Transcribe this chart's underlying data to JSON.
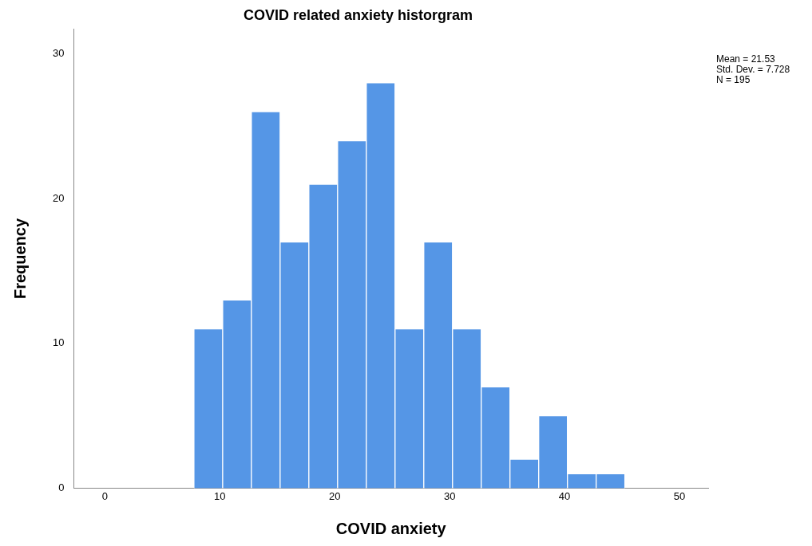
{
  "chart_data": {
    "type": "histogram",
    "title": "COVID related anxiety historgram",
    "xlabel": "COVID anxiety",
    "ylabel": "Frequency",
    "bins": [
      7.75,
      10.25,
      12.75,
      15.25,
      17.75,
      20.25,
      22.75,
      25.25,
      27.75,
      30.25,
      32.75,
      35.25,
      37.75,
      40.25,
      42.75,
      45.25
    ],
    "values": [
      11,
      13,
      26,
      17,
      21,
      24,
      28,
      11,
      17,
      11,
      7,
      2,
      5,
      1,
      1
    ],
    "color": "#5596e6",
    "xlim": [
      -2.7,
      52.5
    ],
    "xticks": [
      0,
      10,
      20,
      30,
      40,
      50
    ],
    "ylim": [
      0,
      31.7
    ],
    "yticks": [
      0,
      10,
      20,
      30
    ],
    "grid": false,
    "legend": false,
    "annotations": [
      "Mean = 21.53",
      "Std. Dev. = 7.728",
      "N = 195"
    ]
  }
}
